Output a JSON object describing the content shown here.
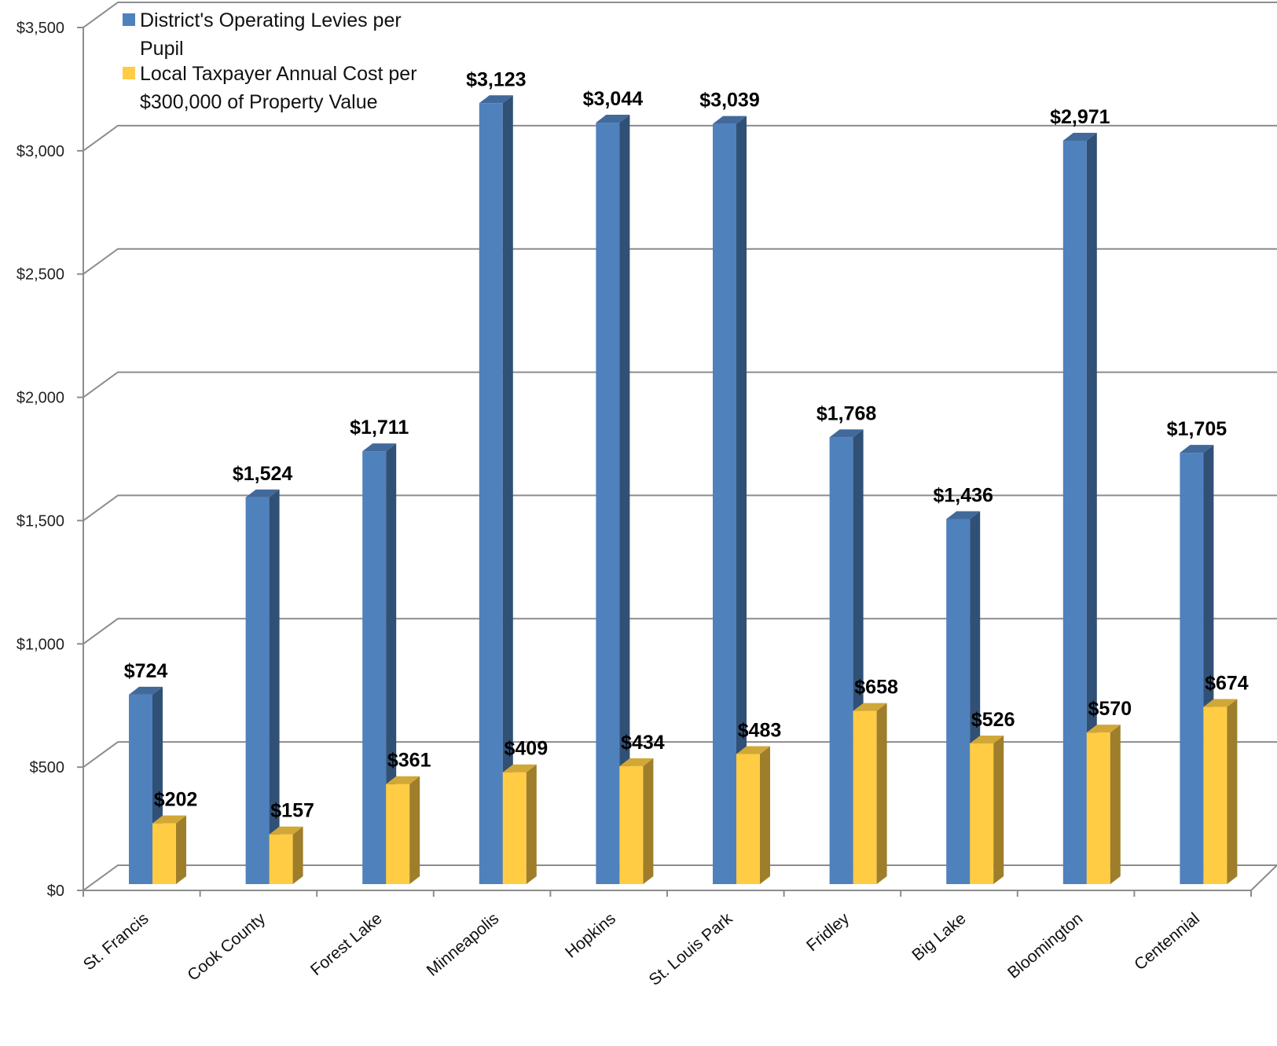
{
  "chart_data": {
    "type": "bar",
    "categories": [
      "St. Francis",
      "Cook County",
      "Forest Lake",
      "Minneapolis",
      "Hopkins",
      "St. Louis Park",
      "Fridley",
      "Big Lake",
      "Bloomington",
      "Centennial"
    ],
    "series": [
      {
        "name": "District's  Operating Levies per Pupil",
        "values": [
          724,
          1524,
          1711,
          3123,
          3044,
          3039,
          1768,
          1436,
          2971,
          1705
        ],
        "labels": [
          "$724",
          "$1,524",
          "$1,711",
          "$3,123",
          "$3,044",
          "$3,039",
          "$1,768",
          "$1,436",
          "$2,971",
          "$1,705"
        ],
        "color": "#4f81bd"
      },
      {
        "name": "Local Taxpayer Annual Cost per $300,000 of Property Value",
        "values": [
          202,
          157,
          361,
          409,
          434,
          483,
          658,
          526,
          570,
          674
        ],
        "labels": [
          "$202",
          "$157",
          "$361",
          "$409",
          "$434",
          "$483",
          "$658",
          "$526",
          "$570",
          "$674"
        ],
        "color": "#ffcc44"
      }
    ],
    "legend": {
      "position": "top-left",
      "lines": [
        [
          "District's  Operating Levies per",
          "Pupil"
        ],
        [
          "Local Taxpayer Annual Cost per",
          "$300,000 of Property Value"
        ]
      ]
    },
    "yticks": [
      "$0",
      "$500",
      "$1,000",
      "$1,500",
      "$2,000",
      "$2,500",
      "$3,000",
      "$3,500"
    ],
    "ylim": [
      0,
      3500
    ],
    "grid": true,
    "three_d": true
  }
}
